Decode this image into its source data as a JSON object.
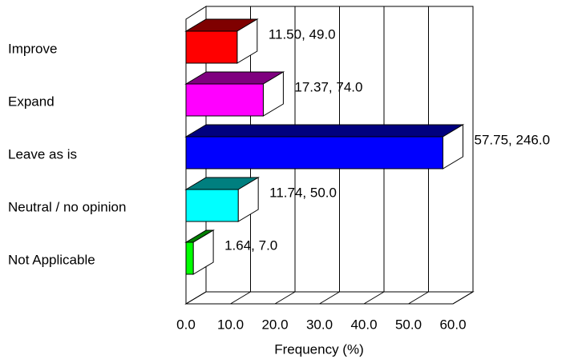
{
  "chart_data": {
    "type": "bar3d-horizontal",
    "categories": [
      "Improve",
      "Expand",
      "Leave as is",
      "Neutral / no opinion",
      "Not Applicable"
    ],
    "values": [
      11.5,
      17.37,
      57.75,
      11.74,
      1.64
    ],
    "counts": [
      49.0,
      74.0,
      246.0,
      50.0,
      7.0
    ],
    "value_labels": [
      "11.50, 49.0",
      "17.37, 74.0",
      "57.75, 246.0",
      "11.74, 50.0",
      "1.64, 7.0"
    ],
    "colors": [
      "#ff0000",
      "#ff00ff",
      "#0000ff",
      "#00ffff",
      "#00ff00"
    ],
    "xlabel": "Frequency (%)",
    "xlim": [
      0,
      60
    ],
    "xticks": [
      {
        "value": 0,
        "label": "0.0"
      },
      {
        "value": 10,
        "label": "10.0"
      },
      {
        "value": 20,
        "label": "20.0"
      },
      {
        "value": 30,
        "label": "30.0"
      },
      {
        "value": 40,
        "label": "40.0"
      },
      {
        "value": 50,
        "label": "50.0"
      },
      {
        "value": 60,
        "label": "60.0"
      }
    ],
    "grid": true
  }
}
